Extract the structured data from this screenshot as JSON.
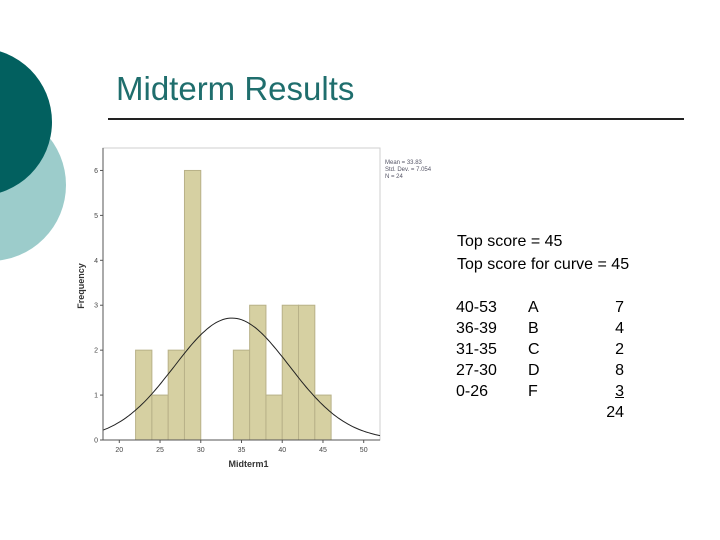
{
  "slide": {
    "title": "Midterm Results",
    "colors": {
      "title": "#1f6e6d",
      "deco_dark": "#02605f",
      "deco_light": "#9ccccb",
      "bar_fill": "#d6d0a2",
      "bar_stroke": "#b8b188",
      "plot_bg": "#ffffff"
    }
  },
  "stats": {
    "mean": "Mean = 33.83",
    "std": "Std. Dev. = 7.054",
    "n": "N = 24"
  },
  "notes": {
    "top_score": "Top score = 45",
    "top_curve": "Top score for curve = 45"
  },
  "grades": [
    {
      "range": "40-53",
      "letter": "A",
      "count": "7"
    },
    {
      "range": "36-39",
      "letter": "B",
      "count": "4"
    },
    {
      "range": "31-35",
      "letter": "C",
      "count": "2"
    },
    {
      "range": "27-30",
      "letter": "D",
      "count": "8"
    },
    {
      "range": "0-26",
      "letter": "F",
      "count": "3"
    }
  ],
  "grades_total": "24",
  "chart_data": {
    "type": "bar",
    "xlabel": "Midterm1",
    "ylabel": "Frequency",
    "xlim": [
      18,
      52
    ],
    "ylim": [
      0,
      6.5
    ],
    "xticks": [
      20,
      25,
      30,
      35,
      40,
      45,
      50
    ],
    "yticks": [
      0,
      1,
      2,
      3,
      4,
      5,
      6
    ],
    "bin_width": 2,
    "bars": [
      {
        "start": 22,
        "value": 2
      },
      {
        "start": 24,
        "value": 1
      },
      {
        "start": 26,
        "value": 2
      },
      {
        "start": 28,
        "value": 6
      },
      {
        "start": 34,
        "value": 2
      },
      {
        "start": 36,
        "value": 3
      },
      {
        "start": 38,
        "value": 1
      },
      {
        "start": 40,
        "value": 3
      },
      {
        "start": 42,
        "value": 3
      },
      {
        "start": 44,
        "value": 1
      }
    ],
    "normal_curve": {
      "mean": 33.83,
      "sd": 7.054,
      "n": 24
    },
    "grid": false
  }
}
